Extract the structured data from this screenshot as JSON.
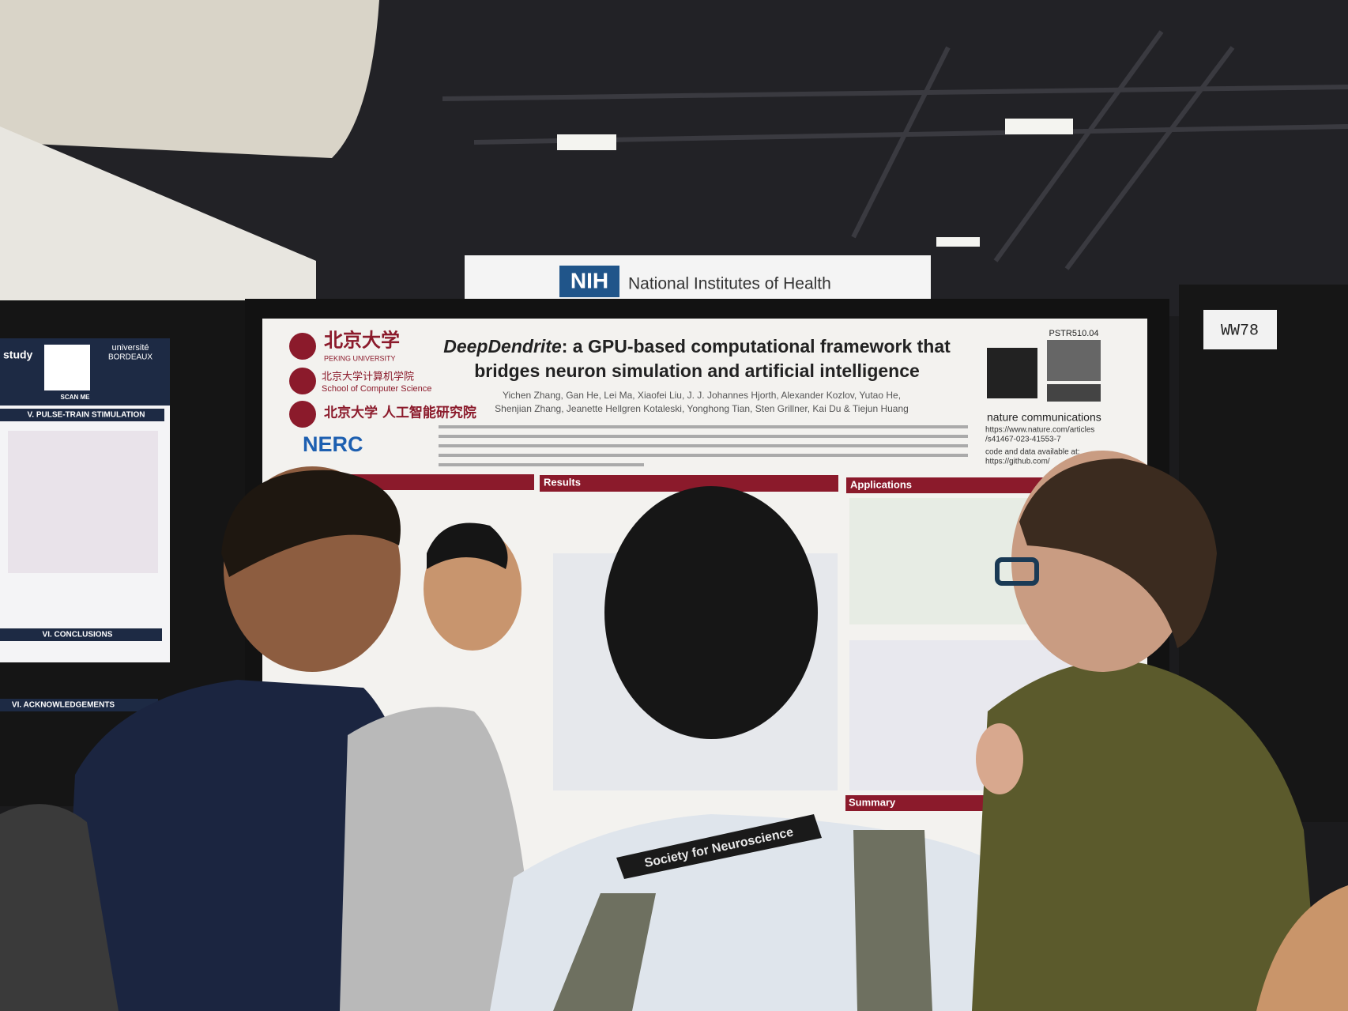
{
  "sign": {
    "logo": "NIH",
    "name": "National Institutes of Health"
  },
  "booth": "WW78",
  "poster": {
    "id": "PSTR510.04",
    "title_em": "DeepDendrite",
    "title_line1": ": a GPU-based computational framework that",
    "title_line2": "bridges neuron simulation and artificial intelligence",
    "authors": [
      "Yichen Zhang, Gan He, Lei Ma, Xiaofei Liu, J. J. Johannes Hjorth, Alexander Kozlov, Yutao He,",
      "Shenjian Zhang, Jeanette Hellgren Kotaleski, Yonghong Tian, Sten Grillner, Kai Du & Tiejun Huang"
    ],
    "institutions": [
      "北京大学",
      "PEKING UNIVERSITY",
      "北京大学计算机学院",
      "School of Computer Science",
      "北京大学 人工智能研究院",
      "NERC"
    ],
    "journal": "nature communications",
    "doi_url": [
      "https://www.nature.com/articles",
      "/s41467-023-41553-7"
    ],
    "code_note": "code and data available at:",
    "code_url": "https://github.com/",
    "sections": [
      "Results",
      "Applications",
      "Summary"
    ]
  },
  "left_poster": {
    "partial_heading": "study",
    "scan": "SCAN ME",
    "university": [
      "université",
      "BORDEAUX"
    ],
    "sections": [
      "V. PULSE-TRAIN STIMULATION",
      "VI. CONCLUSIONS",
      "VI. ACKNOWLEDGEMENTS"
    ]
  },
  "lanyard": "Society for Neuroscience"
}
